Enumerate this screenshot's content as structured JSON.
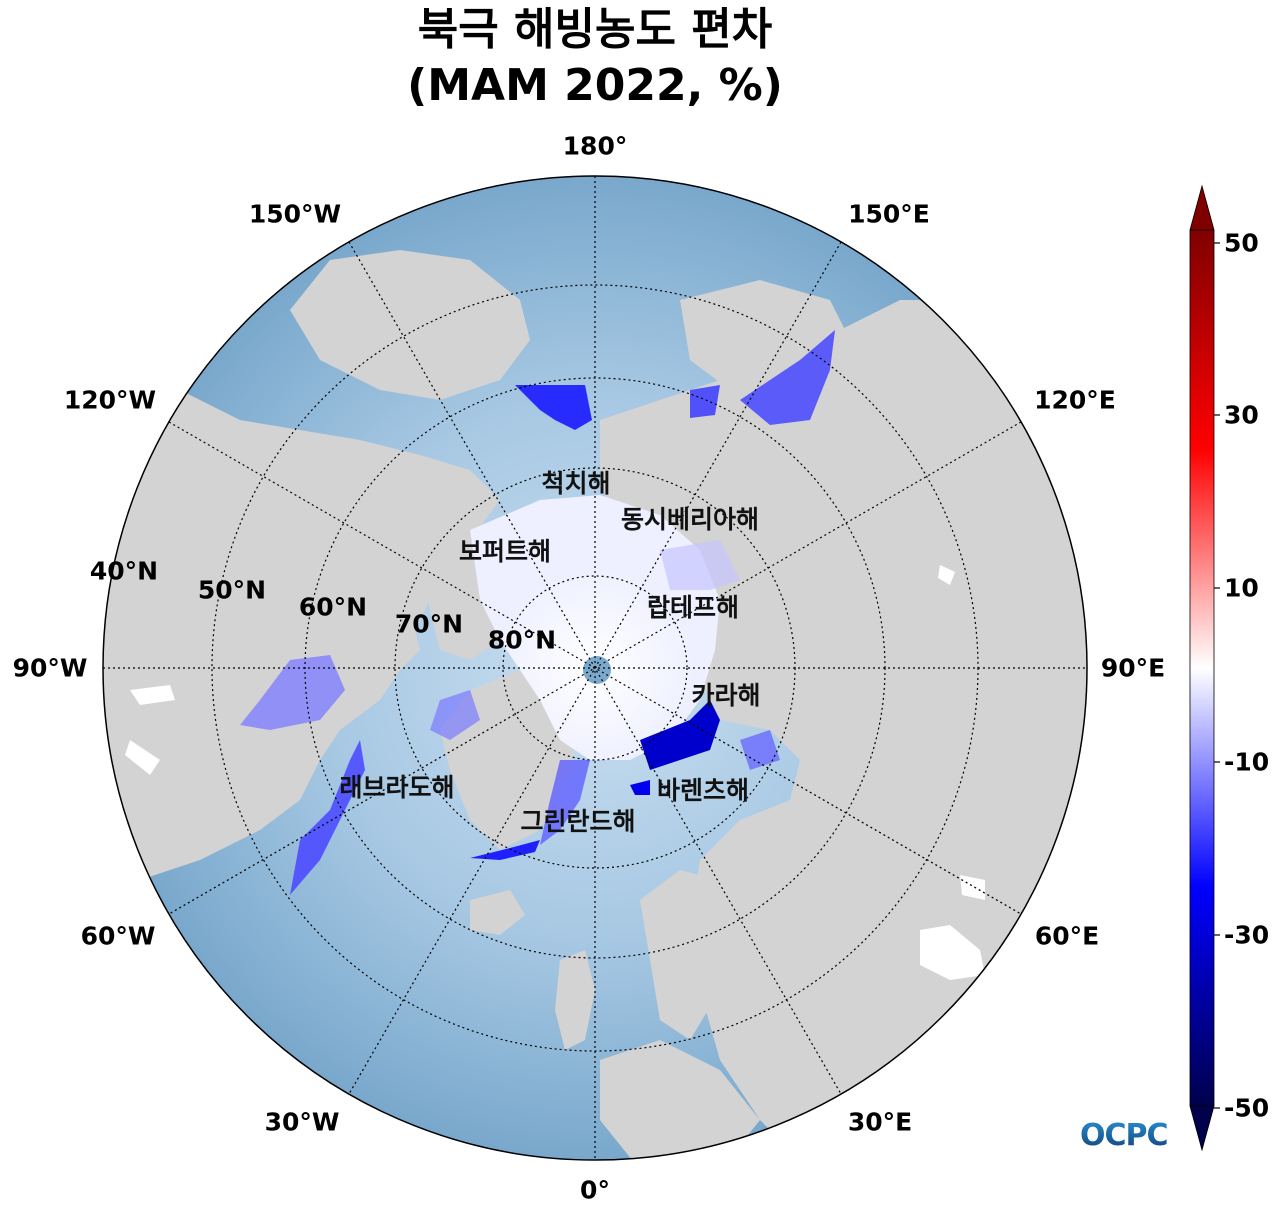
{
  "title_line1": "북극 해빙농도 편차",
  "title_line2": "(MAM 2022, %)",
  "longitude_labels": [
    "180°",
    "150°E",
    "120°E",
    "90°E",
    "60°E",
    "30°E",
    "0°",
    "30°W",
    "60°W",
    "90°W",
    "120°W",
    "150°W"
  ],
  "latitude_labels": [
    "40°N",
    "50°N",
    "60°N",
    "70°N",
    "80°N"
  ],
  "sea_labels": [
    "척치해",
    "동시베리아해",
    "보퍼트해",
    "랍테프해",
    "카라해",
    "래브라도해",
    "바렌츠해",
    "그린란드해"
  ],
  "colorbar": {
    "ticks": [
      "50",
      "30",
      "10",
      "-10",
      "-30",
      "-50"
    ],
    "range": [
      -50,
      50
    ],
    "colormap": "seismic",
    "extend": "both"
  },
  "colors": {
    "land": "#d3d3d3",
    "ocean_deep": "#7aa9cc",
    "ocean_shallow": "#b8d6ea",
    "anomaly_negative": "#0000ff",
    "anomaly_positive": "#ff0000"
  },
  "logo_text": "OCPC"
}
